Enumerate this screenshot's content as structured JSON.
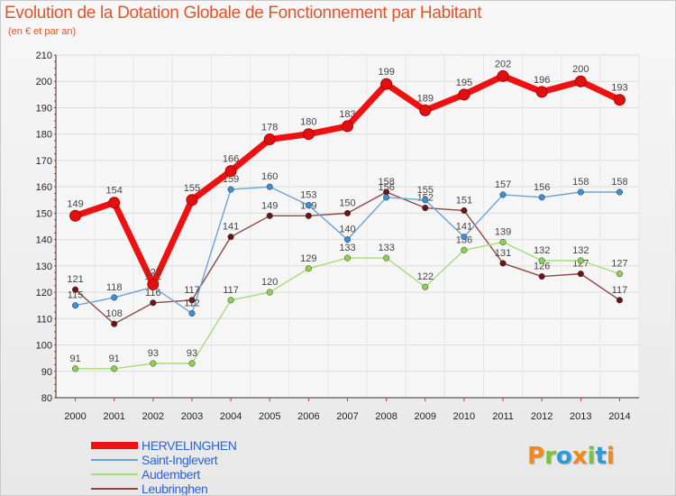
{
  "header": {
    "title": "Evolution de la Dotation Globale de Fonctionnement par Habitant",
    "subtitle": "(en € et par an)"
  },
  "logo": {
    "letters": [
      "P",
      "r",
      "o",
      "x",
      "i",
      "t",
      "i"
    ],
    "colors": [
      "#f08a1e",
      "#7cc242",
      "#2a9bd8",
      "#f08a1e",
      "#7cc242",
      "#2a9bd8",
      "#f08a1e"
    ]
  },
  "chart_data": {
    "type": "line",
    "title": "Evolution de la Dotation Globale de Fonctionnement par Habitant",
    "subtitle": "(en € et par an)",
    "xlabel": "",
    "ylabel": "",
    "x": [
      "2000",
      "2001",
      "2002",
      "2003",
      "2004",
      "2005",
      "2006",
      "2007",
      "2008",
      "2009",
      "2010",
      "2011",
      "2012",
      "2013",
      "2014"
    ],
    "ylim": [
      80,
      210
    ],
    "yticks": [
      80,
      90,
      100,
      110,
      120,
      130,
      140,
      150,
      160,
      170,
      180,
      190,
      200,
      210
    ],
    "grid": true,
    "legend_position": "bottom-left",
    "series": [
      {
        "name": "HERVELINGHEN",
        "color": "#ee1111",
        "marker_color": "#e01010",
        "emphasis": "thick",
        "values": [
          149,
          154,
          123,
          155,
          166,
          178,
          180,
          183,
          199,
          189,
          195,
          202,
          196,
          200,
          193
        ]
      },
      {
        "name": "Saint-Inglevert",
        "color": "#6fa3cf",
        "marker_color": "#3a8fd6",
        "values": [
          115,
          118,
          122,
          112,
          159,
          160,
          153,
          140,
          156,
          155,
          141,
          157,
          156,
          158,
          158
        ]
      },
      {
        "name": "Audembert",
        "color": "#a7dc7c",
        "marker_color": "#8dd14c",
        "values": [
          91,
          91,
          93,
          93,
          117,
          120,
          129,
          133,
          133,
          122,
          136,
          139,
          132,
          132,
          127
        ]
      },
      {
        "name": "Leubringhen",
        "color": "#8b4a4a",
        "marker_color": "#6b1414",
        "values": [
          121,
          108,
          116,
          117,
          141,
          149,
          149,
          150,
          158,
          152,
          151,
          131,
          126,
          127,
          117
        ]
      }
    ]
  }
}
